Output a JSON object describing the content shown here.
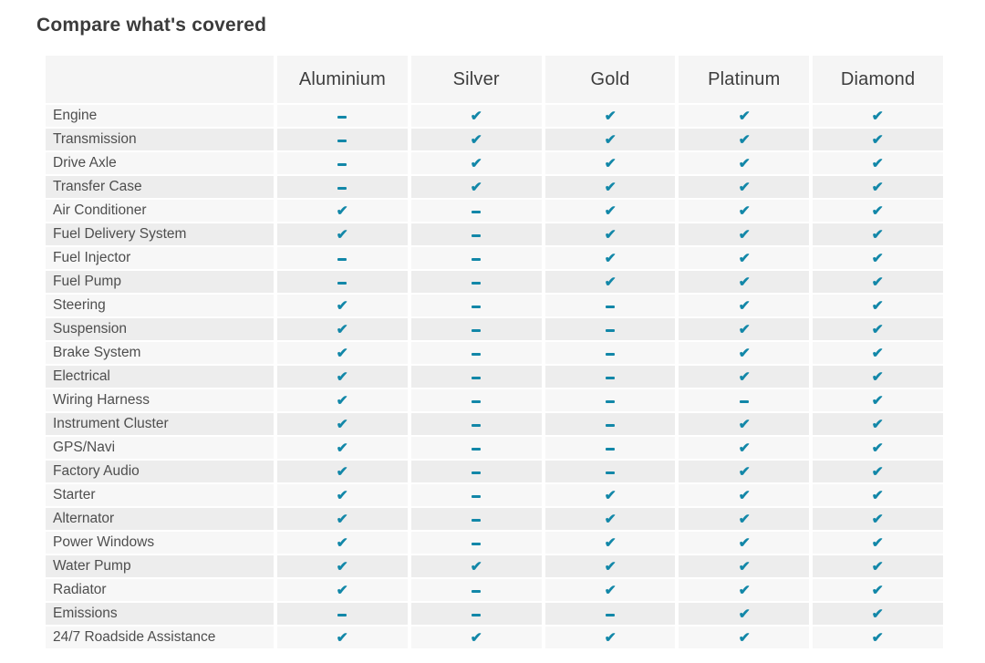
{
  "title": "Compare what's covered",
  "colors": {
    "accent": "#1287a8",
    "header_bg": "#f5f5f5",
    "row_odd_bg": "#f7f7f7",
    "row_even_bg": "#ededed"
  },
  "icons": {
    "check": "✔",
    "check_name": "check-icon",
    "dash_name": "dash-icon"
  },
  "table": {
    "plans": [
      "Aluminium",
      "Silver",
      "Gold",
      "Platinum",
      "Diamond"
    ],
    "rows": [
      {
        "label": "Engine",
        "covered": [
          false,
          true,
          true,
          true,
          true
        ]
      },
      {
        "label": "Transmission",
        "covered": [
          false,
          true,
          true,
          true,
          true
        ]
      },
      {
        "label": "Drive Axle",
        "covered": [
          false,
          true,
          true,
          true,
          true
        ]
      },
      {
        "label": "Transfer Case",
        "covered": [
          false,
          true,
          true,
          true,
          true
        ]
      },
      {
        "label": "Air Conditioner",
        "covered": [
          true,
          false,
          true,
          true,
          true
        ]
      },
      {
        "label": "Fuel Delivery System",
        "covered": [
          true,
          false,
          true,
          true,
          true
        ]
      },
      {
        "label": "Fuel Injector",
        "covered": [
          false,
          false,
          true,
          true,
          true
        ]
      },
      {
        "label": "Fuel Pump",
        "covered": [
          false,
          false,
          true,
          true,
          true
        ]
      },
      {
        "label": "Steering",
        "covered": [
          true,
          false,
          false,
          true,
          true
        ]
      },
      {
        "label": "Suspension",
        "covered": [
          true,
          false,
          false,
          true,
          true
        ]
      },
      {
        "label": "Brake System",
        "covered": [
          true,
          false,
          false,
          true,
          true
        ]
      },
      {
        "label": "Electrical",
        "covered": [
          true,
          false,
          false,
          true,
          true
        ]
      },
      {
        "label": "Wiring Harness",
        "covered": [
          true,
          false,
          false,
          false,
          true
        ]
      },
      {
        "label": "Instrument Cluster",
        "covered": [
          true,
          false,
          false,
          true,
          true
        ]
      },
      {
        "label": "GPS/Navi",
        "covered": [
          true,
          false,
          false,
          true,
          true
        ]
      },
      {
        "label": "Factory Audio",
        "covered": [
          true,
          false,
          false,
          true,
          true
        ]
      },
      {
        "label": "Starter",
        "covered": [
          true,
          false,
          true,
          true,
          true
        ]
      },
      {
        "label": "Alternator",
        "covered": [
          true,
          false,
          true,
          true,
          true
        ]
      },
      {
        "label": "Power Windows",
        "covered": [
          true,
          false,
          true,
          true,
          true
        ]
      },
      {
        "label": "Water Pump",
        "covered": [
          true,
          true,
          true,
          true,
          true
        ]
      },
      {
        "label": "Radiator",
        "covered": [
          true,
          false,
          true,
          true,
          true
        ]
      },
      {
        "label": "Emissions",
        "covered": [
          false,
          false,
          false,
          true,
          true
        ]
      },
      {
        "label": "24/7 Roadside Assistance",
        "covered": [
          true,
          true,
          true,
          true,
          true
        ]
      }
    ]
  }
}
